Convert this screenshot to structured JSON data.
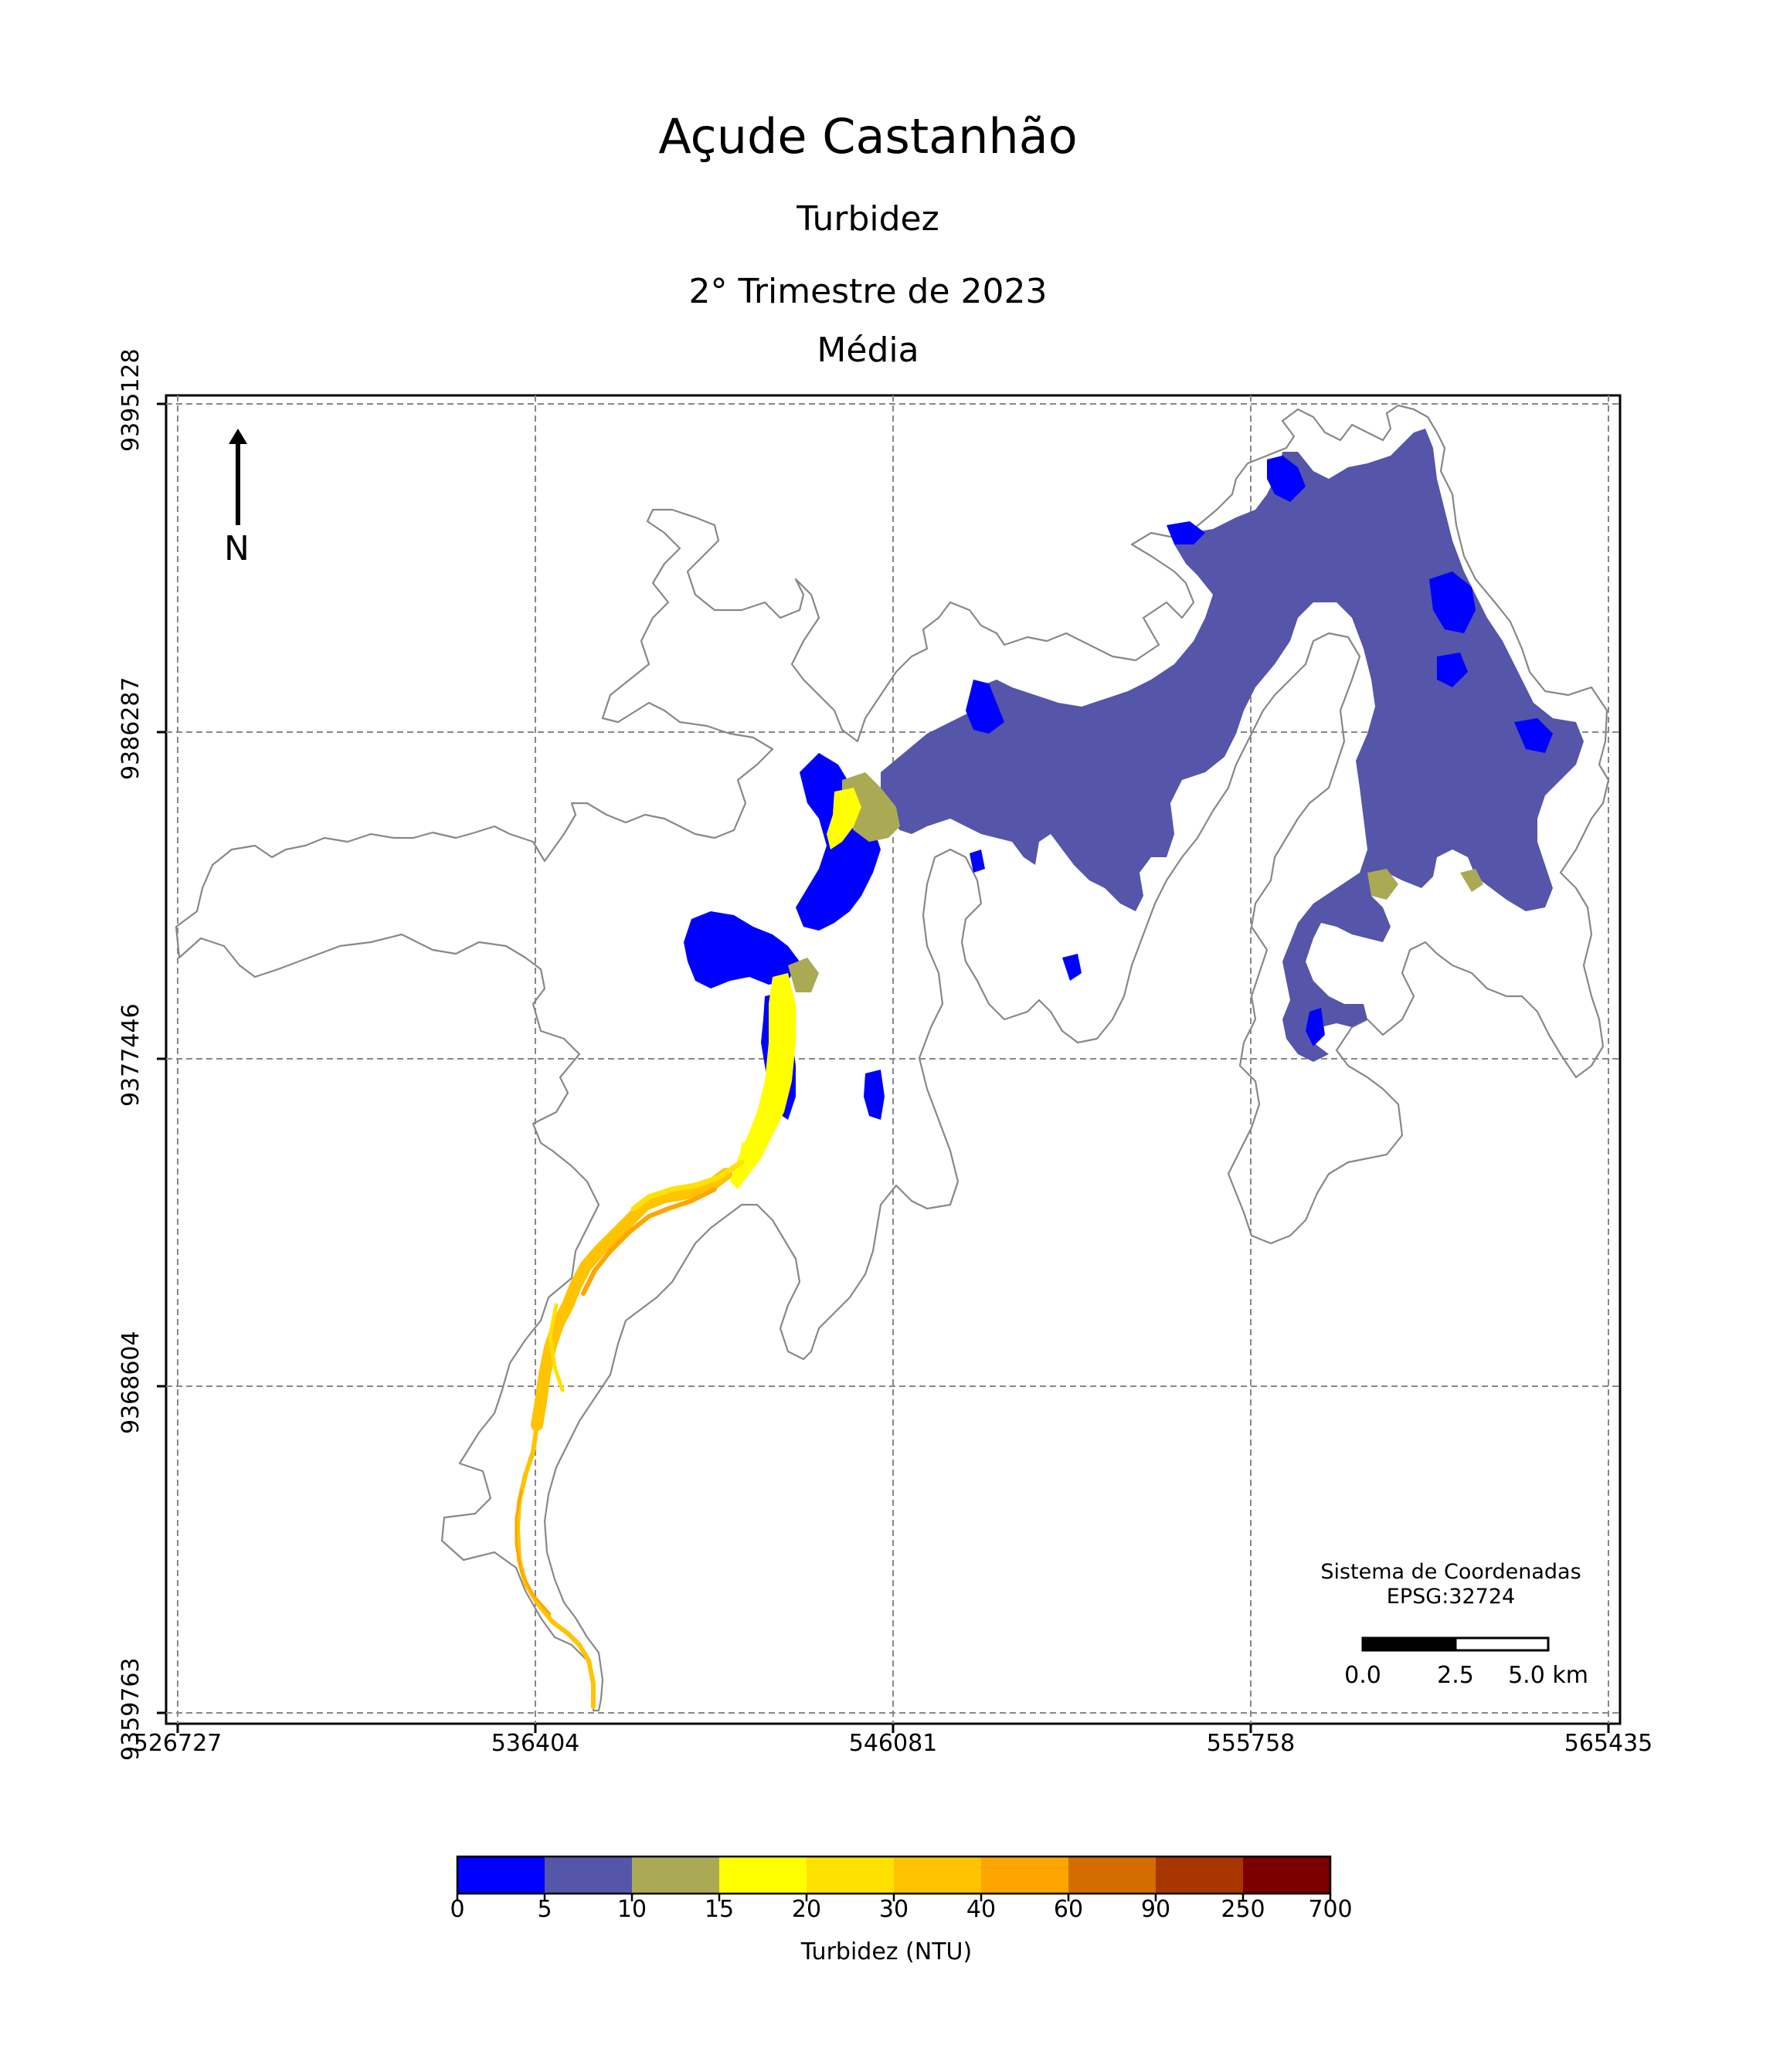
{
  "title": "Açude Castanhão",
  "subtitle": "Turbidez",
  "period": "2° Trimestre de 2023",
  "statistic": "Média",
  "north_arrow": {
    "label": "N",
    "icon": "north-arrow-icon"
  },
  "axes": {
    "x_ticks": [
      "526727",
      "536404",
      "546081",
      "555758",
      "565435"
    ],
    "y_ticks": [
      "9395128",
      "9386287",
      "9377446",
      "9368604",
      "9359763"
    ],
    "grid": true
  },
  "crs": {
    "title": "Sistema de Coordenadas",
    "code": "EPSG:32724"
  },
  "scale_bar": {
    "labels": [
      "0.0",
      "2.5",
      "5.0 km"
    ]
  },
  "colorbar": {
    "label": "Turbidez (NTU)",
    "ticks": [
      "0",
      "5",
      "10",
      "15",
      "20",
      "30",
      "40",
      "60",
      "90",
      "250",
      "700"
    ],
    "colors": [
      "#0000ff",
      "#5555aa",
      "#aaaa55",
      "#ffff00",
      "#ffe100",
      "#ffc300",
      "#ffa500",
      "#d36d00",
      "#a73600",
      "#7b0000"
    ]
  },
  "legend_colors": {
    "outline": "#888888",
    "grid": "#888888"
  }
}
